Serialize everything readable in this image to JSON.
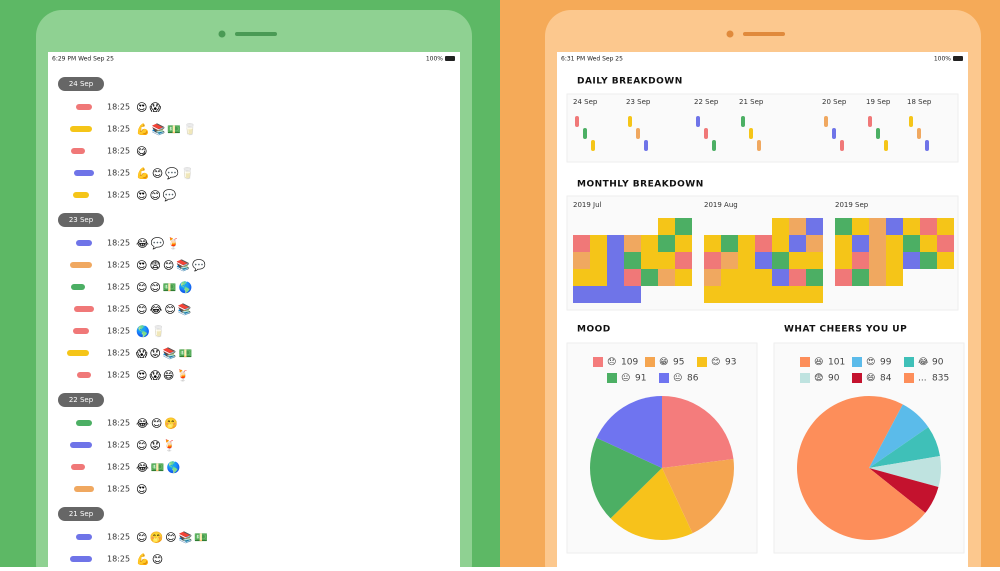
{
  "left": {
    "status_time": "6:29 PM  Wed Sep 25",
    "battery": "100%",
    "groups": [
      {
        "date": "24 Sep",
        "entries": [
          {
            "color": "#f07878",
            "time": "18:25",
            "emoji": "😍😱"
          },
          {
            "color": "#f5c518",
            "time": "18:25",
            "emoji": "💪📚💵🥛"
          },
          {
            "color": "#f07878",
            "time": "18:25",
            "emoji": "😋"
          },
          {
            "color": "#6f74e8",
            "time": "18:25",
            "emoji": "💪😊💬🥛"
          },
          {
            "color": "#f5c518",
            "time": "18:25",
            "emoji": "😍😊💬"
          }
        ]
      },
      {
        "date": "23 Sep",
        "entries": [
          {
            "color": "#6f74e8",
            "time": "18:25",
            "emoji": "😂💬🍹"
          },
          {
            "color": "#f0a860",
            "time": "18:25",
            "emoji": "😍😨😊📚💬"
          },
          {
            "color": "#4caf64",
            "time": "18:25",
            "emoji": "😊😊💵🌎"
          },
          {
            "color": "#f07878",
            "time": "18:25",
            "emoji": "😊😂😊📚"
          },
          {
            "color": "#f07878",
            "time": "18:25",
            "emoji": "🌎🥛"
          },
          {
            "color": "#f5c518",
            "time": "18:25",
            "emoji": "😱😟📚💵"
          },
          {
            "color": "#f07878",
            "time": "18:25",
            "emoji": "😍😱😄🍹"
          }
        ]
      },
      {
        "date": "22 Sep",
        "entries": [
          {
            "color": "#4caf64",
            "time": "18:25",
            "emoji": "😂😊🤭"
          },
          {
            "color": "#6f74e8",
            "time": "18:25",
            "emoji": "😊😟🍹"
          },
          {
            "color": "#f07878",
            "time": "18:25",
            "emoji": "😂💵🌎"
          },
          {
            "color": "#f0a860",
            "time": "18:25",
            "emoji": "😍"
          }
        ]
      },
      {
        "date": "21 Sep",
        "entries": [
          {
            "color": "#6f74e8",
            "time": "18:25",
            "emoji": "😊🤭😊📚💵"
          },
          {
            "color": "#6f74e8",
            "time": "18:25",
            "emoji": "💪😊"
          }
        ]
      }
    ]
  },
  "right": {
    "status_time": "6:31 PM  Wed Sep 25",
    "battery": "100%",
    "daily": {
      "title": "DAILY BREAKDOWN",
      "dates": [
        "24 Sep",
        "23 Sep",
        "22 Sep",
        "21 Sep",
        "20 Sep",
        "19 Sep",
        "18 Sep"
      ]
    },
    "monthly": {
      "title": "MONTHLY BREAKDOWN",
      "months": [
        "2019 Jul",
        "2019 Aug",
        "2019 Sep"
      ]
    },
    "mood": {
      "type": "pie",
      "title": "MOOD",
      "slices": [
        {
          "label": "😞",
          "value": 109,
          "color": "#f47c7c"
        },
        {
          "label": "😁",
          "value": 95,
          "color": "#f5a550"
        },
        {
          "label": "😊",
          "value": 93,
          "color": "#f7c21b"
        },
        {
          "label": "😐",
          "value": 91,
          "color": "#4caf64"
        },
        {
          "label": "😐",
          "value": 86,
          "color": "#6f74f0"
        }
      ]
    },
    "cheers": {
      "type": "pie",
      "title": "WHAT CHEERS YOU UP",
      "slices": [
        {
          "label": "😆",
          "value": 101,
          "color": "#fd8e5a"
        },
        {
          "label": "😍",
          "value": 99,
          "color": "#5bbbea"
        },
        {
          "label": "😂",
          "value": 90,
          "color": "#3fc0b8"
        },
        {
          "label": "😨",
          "value": 90,
          "color": "#bfe3e0"
        },
        {
          "label": "😄",
          "value": 84,
          "color": "#c4122e"
        },
        {
          "label": "...",
          "value": 835,
          "color": "#fd8e5a"
        }
      ]
    }
  }
}
